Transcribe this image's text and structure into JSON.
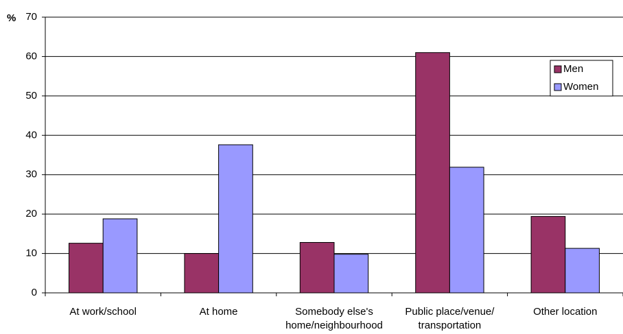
{
  "chart_data": {
    "type": "bar",
    "y_label": "%",
    "categories": [
      [
        "At work/school"
      ],
      [
        "At home"
      ],
      [
        "Somebody else's",
        "home/neighbourhood"
      ],
      [
        "Public place/venue/",
        "transportation"
      ],
      [
        "Other location"
      ]
    ],
    "series": [
      {
        "name": "Men",
        "color": "#993366",
        "values": [
          12.6,
          10,
          12.8,
          61,
          19.4
        ]
      },
      {
        "name": "Women",
        "color": "#9999ff",
        "values": [
          18.8,
          37.6,
          9.8,
          31.9,
          11.3
        ]
      }
    ],
    "ylim": [
      0,
      70
    ],
    "yticks": [
      0,
      10,
      20,
      30,
      40,
      50,
      60,
      70
    ],
    "grid": true,
    "legend": "upper-right"
  }
}
